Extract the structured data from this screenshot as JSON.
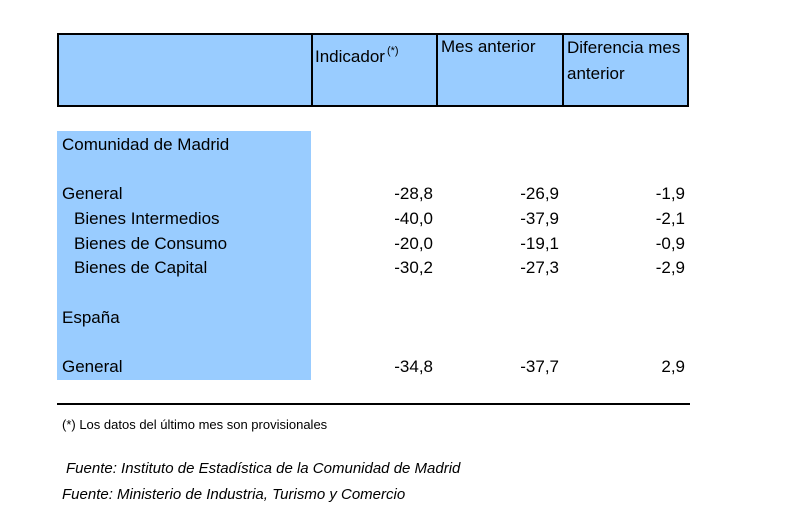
{
  "table": {
    "header": {
      "indicador": "Indicador",
      "indicador_note_mark": "(*)",
      "mes_anterior": "Mes anterior",
      "diferencia": "Diferencia mes anterior"
    },
    "sections": [
      {
        "title": "Comunidad de Madrid",
        "rows": [
          {
            "label": "General",
            "indicador": "-28,8",
            "mes_anterior": "-26,9",
            "diferencia": "-1,9"
          },
          {
            "label": "Bienes Intermedios",
            "indicador": "-40,0",
            "mes_anterior": "-37,9",
            "diferencia": "-2,1"
          },
          {
            "label": "Bienes de Consumo",
            "indicador": "-20,0",
            "mes_anterior": "-19,1",
            "diferencia": "-0,9"
          },
          {
            "label": "Bienes de Capital",
            "indicador": "-30,2",
            "mes_anterior": "-27,3",
            "diferencia": "-2,9"
          }
        ]
      },
      {
        "title": "España",
        "rows": [
          {
            "label": "General",
            "indicador": "-34,8",
            "mes_anterior": "-37,7",
            "diferencia": "2,9"
          }
        ]
      }
    ]
  },
  "footnote": "(*) Los datos del último mes son provisionales",
  "sources": [
    "Fuente: Instituto de Estadística de la Comunidad de Madrid",
    "Fuente: Ministerio de Industria, Turismo y Comercio"
  ]
}
